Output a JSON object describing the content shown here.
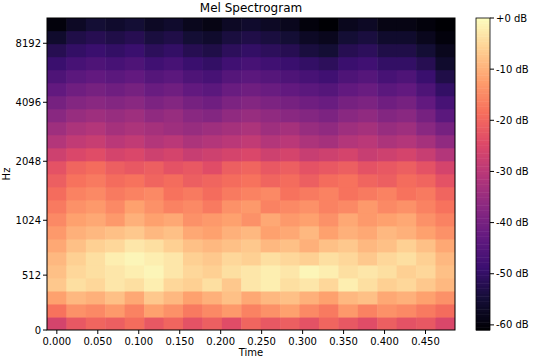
{
  "chart_data": {
    "type": "heatmap",
    "title": "Mel Spectrogram",
    "x_label": "Time",
    "y_label": "Hz",
    "log": "y",
    "xlim": [
      -0.012,
      0.486
    ],
    "xticks": [
      {
        "value": 0,
        "label": "0.000"
      },
      {
        "value": 0.05,
        "label": "0.050"
      },
      {
        "value": 0.1,
        "label": "0.100"
      },
      {
        "value": 0.15,
        "label": "0.150"
      },
      {
        "value": 0.2,
        "label": "0.200"
      },
      {
        "value": 0.25,
        "label": "0.250"
      },
      {
        "value": 0.3,
        "label": "0.300"
      },
      {
        "value": 0.35,
        "label": "0.350"
      },
      {
        "value": 0.4,
        "label": "0.400"
      },
      {
        "value": 0.45,
        "label": "0.450"
      }
    ],
    "ylim": [
      0,
      11025
    ],
    "yticks": [
      0,
      512,
      1024,
      2048,
      4096,
      8192
    ],
    "xbins": [
      -0.012,
      0.0117,
      0.0354,
      0.0591,
      0.0828,
      0.1066,
      0.1303,
      0.154,
      0.1777,
      0.2014,
      0.2251,
      0.2488,
      0.2725,
      0.2962,
      0.3199,
      0.3437,
      0.3674,
      0.3911,
      0.4148,
      0.4385,
      0.4622,
      0.486
    ],
    "ybins": [
      0,
      121,
      243,
      364,
      486,
      607,
      729,
      850,
      972,
      1117,
      1301,
      1517,
      1767,
      2059,
      2399,
      2796,
      3258,
      3795,
      4423,
      5152,
      6005,
      6998,
      8153,
      9502,
      11025
    ],
    "cells": [
      [
        -26,
        -22,
        -20,
        -21,
        -19,
        -22,
        -20,
        -23,
        -21,
        -24,
        -20,
        -22,
        -21,
        -23,
        -20,
        -22,
        -24,
        -21,
        -23,
        -22,
        -25
      ],
      [
        -18,
        -14,
        -15,
        -13,
        -16,
        -12,
        -14,
        -17,
        -15,
        -13,
        -16,
        -14,
        -12,
        -15,
        -17,
        -13,
        -16,
        -14,
        -15,
        -17,
        -19
      ],
      [
        -12,
        -9,
        -10,
        -8,
        -11,
        -7,
        -9,
        -12,
        -10,
        -8,
        -11,
        -9,
        -8,
        -10,
        -12,
        -9,
        -8,
        -11,
        -10,
        -12,
        -14
      ],
      [
        -7,
        -4,
        -5,
        -3,
        -4,
        -2,
        -5,
        -6,
        -4,
        -7,
        -3,
        -2,
        -4,
        -3,
        -5,
        -2,
        -4,
        -6,
        -5,
        -7,
        -9
      ],
      [
        -8,
        -5,
        -4,
        -3,
        -2,
        -1,
        -3,
        -5,
        -6,
        -4,
        -3,
        -2,
        -3,
        -1,
        -2,
        -4,
        -3,
        -4,
        -6,
        -5,
        -8
      ],
      [
        -9,
        -6,
        -4,
        -2,
        -1,
        -2,
        -3,
        -6,
        -7,
        -5,
        -6,
        -4,
        -5,
        -6,
        -4,
        -5,
        -7,
        -5,
        -4,
        -6,
        -9
      ],
      [
        -11,
        -8,
        -6,
        -5,
        -3,
        -4,
        -6,
        -8,
        -9,
        -8,
        -7,
        -9,
        -8,
        -10,
        -8,
        -7,
        -9,
        -8,
        -6,
        -8,
        -11
      ],
      [
        -13,
        -10,
        -9,
        -8,
        -7,
        -9,
        -8,
        -11,
        -12,
        -10,
        -9,
        -12,
        -11,
        -9,
        -12,
        -10,
        -11,
        -9,
        -10,
        -12,
        -14
      ],
      [
        -15,
        -12,
        -11,
        -13,
        -10,
        -12,
        -11,
        -14,
        -13,
        -12,
        -14,
        -11,
        -13,
        -12,
        -14,
        -11,
        -13,
        -12,
        -11,
        -14,
        -16
      ],
      [
        -17,
        -14,
        -13,
        -15,
        -12,
        -14,
        -16,
        -15,
        -17,
        -14,
        -13,
        -16,
        -15,
        -14,
        -16,
        -15,
        -13,
        -15,
        -14,
        -16,
        -18
      ],
      [
        -19,
        -16,
        -15,
        -17,
        -16,
        -15,
        -18,
        -17,
        -19,
        -17,
        -16,
        -15,
        -18,
        -17,
        -16,
        -18,
        -17,
        -16,
        -18,
        -17,
        -20
      ],
      [
        -21,
        -18,
        -17,
        -19,
        -18,
        -20,
        -19,
        -21,
        -20,
        -19,
        -18,
        -20,
        -19,
        -21,
        -19,
        -18,
        -20,
        -21,
        -19,
        -20,
        -23
      ],
      [
        -23,
        -20,
        -19,
        -21,
        -22,
        -21,
        -23,
        -22,
        -24,
        -21,
        -20,
        -22,
        -21,
        -23,
        -22,
        -21,
        -23,
        -22,
        -21,
        -23,
        -26
      ],
      [
        -27,
        -25,
        -24,
        -26,
        -25,
        -27,
        -26,
        -28,
        -27,
        -26,
        -25,
        -27,
        -26,
        -28,
        -27,
        -26,
        -28,
        -27,
        -26,
        -28,
        -31
      ],
      [
        -31,
        -29,
        -28,
        -30,
        -29,
        -31,
        -30,
        -32,
        -31,
        -30,
        -29,
        -31,
        -30,
        -32,
        -33,
        -31,
        -30,
        -32,
        -31,
        -33,
        -36
      ],
      [
        -34,
        -32,
        -31,
        -33,
        -32,
        -33,
        -34,
        -35,
        -34,
        -33,
        -32,
        -34,
        -33,
        -35,
        -36,
        -34,
        -33,
        -35,
        -34,
        -37,
        -40
      ],
      [
        -37,
        -35,
        -34,
        -35,
        -34,
        -36,
        -35,
        -37,
        -38,
        -36,
        -35,
        -36,
        -37,
        -38,
        -39,
        -37,
        -36,
        -38,
        -37,
        -40,
        -44
      ],
      [
        -40,
        -38,
        -37,
        -38,
        -37,
        -39,
        -38,
        -40,
        -41,
        -39,
        -38,
        -39,
        -40,
        -41,
        -42,
        -40,
        -39,
        -41,
        -40,
        -43,
        -47
      ],
      [
        -43,
        -41,
        -40,
        -41,
        -40,
        -42,
        -41,
        -43,
        -44,
        -42,
        -41,
        -42,
        -43,
        -44,
        -45,
        -43,
        -42,
        -44,
        -43,
        -46,
        -50
      ],
      [
        -46,
        -44,
        -43,
        -44,
        -43,
        -45,
        -44,
        -46,
        -47,
        -45,
        -44,
        -45,
        -46,
        -47,
        -48,
        -46,
        -45,
        -47,
        -46,
        -49,
        -53
      ],
      [
        -49,
        -47,
        -46,
        -47,
        -46,
        -48,
        -47,
        -49,
        -50,
        -48,
        -47,
        -48,
        -49,
        -50,
        -51,
        -49,
        -48,
        -50,
        -50,
        -52,
        -56
      ],
      [
        -52,
        -50,
        -49,
        -50,
        -49,
        -51,
        -50,
        -52,
        -53,
        -51,
        -50,
        -51,
        -52,
        -54,
        -55,
        -52,
        -51,
        -53,
        -53,
        -55,
        -58
      ],
      [
        -56,
        -53,
        -52,
        -53,
        -52,
        -54,
        -53,
        -55,
        -56,
        -54,
        -53,
        -54,
        -55,
        -57,
        -58,
        -55,
        -54,
        -56,
        -56,
        -58,
        -60
      ],
      [
        -60,
        -57,
        -55,
        -56,
        -55,
        -57,
        -56,
        -58,
        -59,
        -57,
        -56,
        -57,
        -58,
        -60,
        -61,
        -58,
        -57,
        -59,
        -59,
        -60,
        -61
      ]
    ],
    "clim": [
      -61,
      0
    ],
    "cticks": [
      {
        "value": 0,
        "label": "+0 dB"
      },
      {
        "value": -10,
        "label": "-10 dB"
      },
      {
        "value": -20,
        "label": "-20 dB"
      },
      {
        "value": -30,
        "label": "-30 dB"
      },
      {
        "value": -40,
        "label": "-40 dB"
      },
      {
        "value": -50,
        "label": "-50 dB"
      },
      {
        "value": -60,
        "label": "-60 dB"
      }
    ]
  }
}
